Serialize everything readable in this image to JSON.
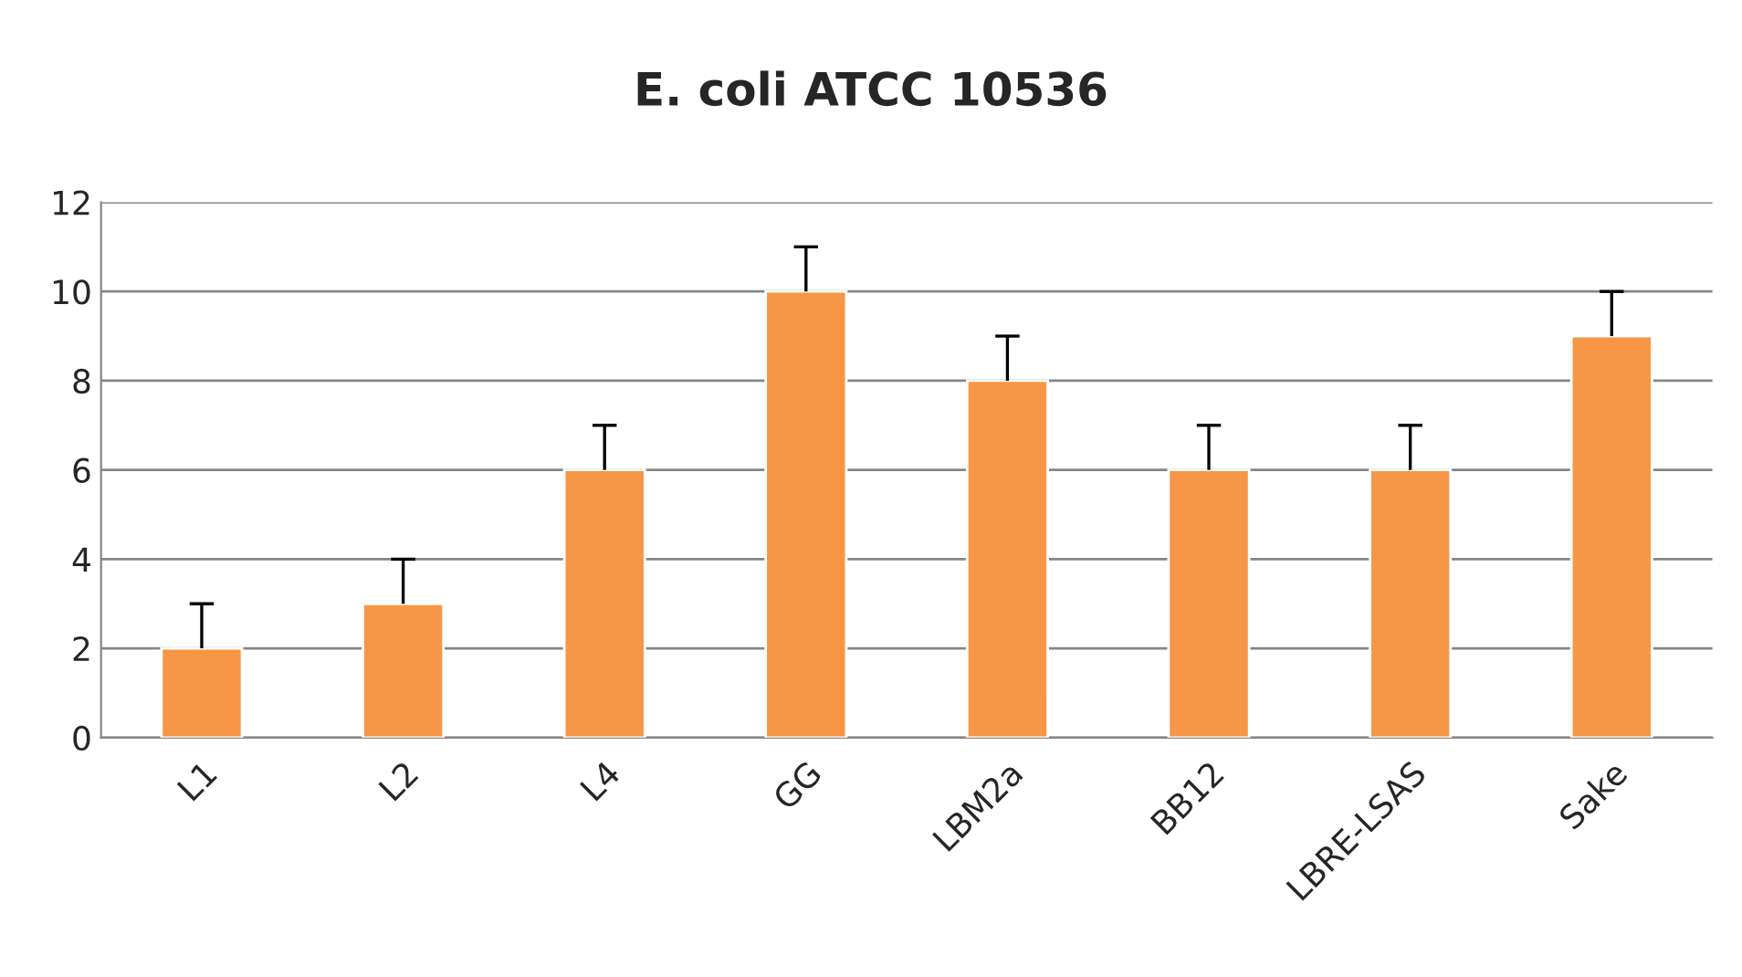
{
  "chart_data": {
    "type": "bar",
    "title": "E. coli ATCC 10536",
    "categories": [
      "L1",
      "L2",
      "L4",
      "GG",
      "LBM2a",
      "BB12",
      "LBRE-LSAS",
      "Sake"
    ],
    "values": [
      2,
      3,
      6,
      10,
      8,
      6,
      6,
      9
    ],
    "errors": [
      [
        2,
        3
      ],
      [
        3,
        4
      ],
      [
        6,
        7
      ],
      [
        10,
        11
      ],
      [
        8,
        9
      ],
      [
        6,
        7
      ],
      [
        6,
        7
      ],
      [
        9,
        10
      ]
    ],
    "color": "#f79646",
    "ylim": [
      0,
      12
    ],
    "yticks": [
      0,
      2,
      4,
      6,
      8,
      10,
      12
    ],
    "grid": "y"
  }
}
